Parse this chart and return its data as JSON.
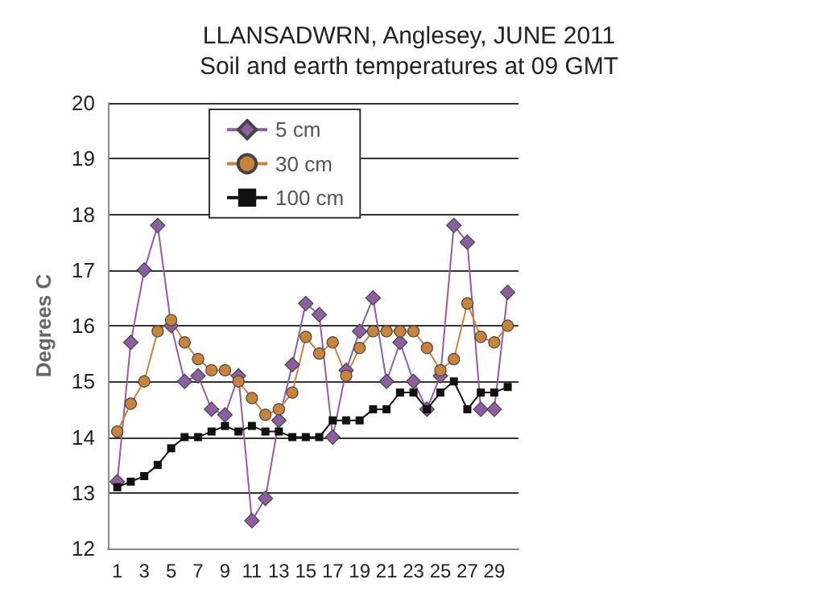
{
  "chart_data": {
    "type": "line",
    "title": "LLANSADWRN, Anglesey, JUNE 2011",
    "subtitle": "Soil and earth temperatures at 09 GMT",
    "ylabel": "Degrees C",
    "x": [
      1,
      2,
      3,
      4,
      5,
      6,
      7,
      8,
      9,
      10,
      11,
      12,
      13,
      14,
      15,
      16,
      17,
      18,
      19,
      20,
      21,
      22,
      23,
      24,
      25,
      26,
      27,
      28,
      29,
      30
    ],
    "xlim": [
      0.3,
      30.8
    ],
    "xticks": [
      1,
      3,
      5,
      7,
      9,
      11,
      13,
      15,
      17,
      19,
      21,
      23,
      25,
      27,
      29
    ],
    "ylim": [
      12,
      20
    ],
    "yticks": [
      12,
      13,
      14,
      15,
      16,
      17,
      18,
      19,
      20
    ],
    "grid": "y",
    "legend": "top left",
    "series": [
      {
        "name": "5 cm",
        "color": "#8e5fa0",
        "marker": "diamond",
        "values": [
          13.2,
          15.7,
          17.0,
          17.8,
          16.0,
          15.0,
          15.1,
          14.5,
          14.4,
          15.1,
          12.5,
          12.9,
          14.3,
          15.3,
          16.4,
          16.2,
          14.0,
          15.2,
          15.9,
          16.5,
          15.0,
          15.7,
          15.0,
          14.5,
          15.1,
          17.8,
          17.5,
          14.5,
          14.5,
          16.6
        ]
      },
      {
        "name": "30 cm",
        "color": "#c8843c",
        "marker": "circle",
        "values": [
          14.1,
          14.6,
          15.0,
          15.9,
          16.1,
          15.7,
          15.4,
          15.2,
          15.2,
          15.0,
          14.7,
          14.4,
          14.5,
          14.8,
          15.8,
          15.5,
          15.7,
          15.1,
          15.6,
          15.9,
          15.9,
          15.9,
          15.9,
          15.6,
          15.2,
          15.4,
          16.4,
          15.8,
          15.7,
          16.0
        ]
      },
      {
        "name": "100 cm",
        "color": "#111111",
        "marker": "square",
        "values": [
          13.1,
          13.2,
          13.3,
          13.5,
          13.8,
          14.0,
          14.0,
          14.1,
          14.2,
          14.1,
          14.2,
          14.1,
          14.1,
          14.0,
          14.0,
          14.0,
          14.3,
          14.3,
          14.3,
          14.5,
          14.5,
          14.8,
          14.8,
          14.5,
          14.8,
          15.0,
          14.5,
          14.8,
          14.8,
          14.9
        ]
      }
    ]
  }
}
